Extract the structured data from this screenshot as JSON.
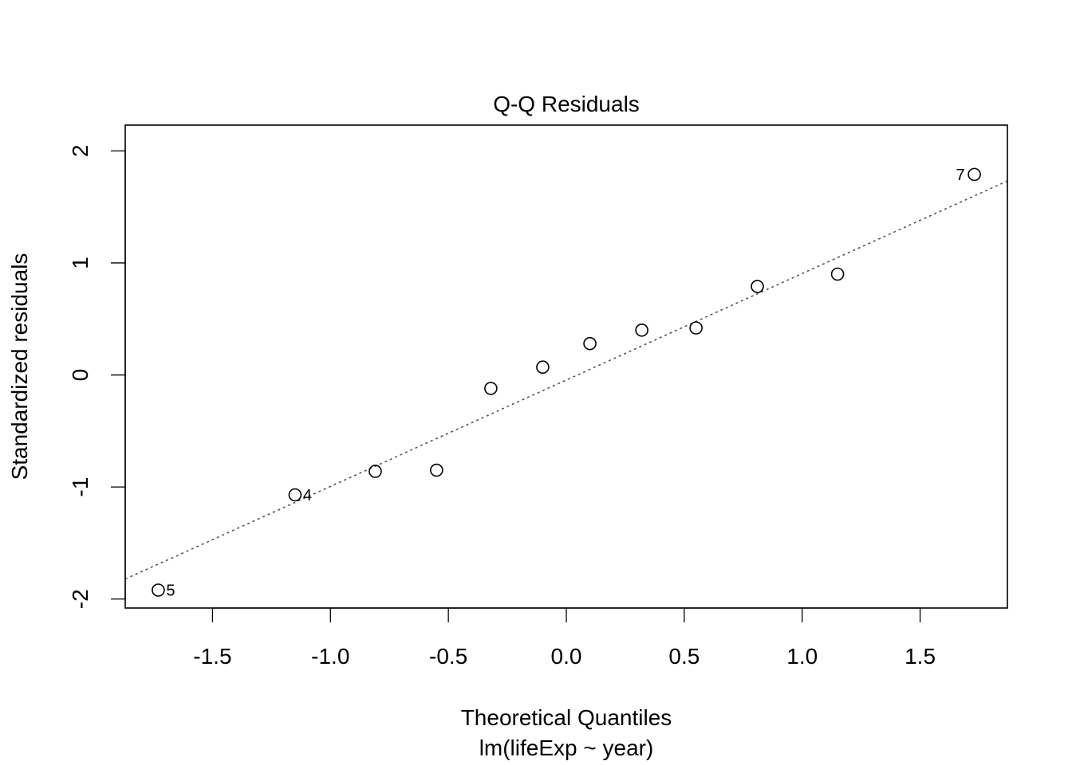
{
  "chart_data": {
    "type": "scatter",
    "title": "Q-Q Residuals",
    "xlabel": "Theoretical Quantiles",
    "sublabel": "lm(lifeExp ~ year)",
    "ylabel": "Standardized residuals",
    "xlim": [
      -1.87,
      1.87
    ],
    "ylim": [
      -2.08,
      2.23
    ],
    "x_ticks": [
      -1.5,
      -1.0,
      -0.5,
      0.0,
      0.5,
      1.0,
      1.5
    ],
    "x_tick_labels": [
      "-1.5",
      "-1.0",
      "-0.5",
      "0.0",
      "0.5",
      "1.0",
      "1.5"
    ],
    "y_ticks": [
      -2,
      -1,
      0,
      1,
      2
    ],
    "y_tick_labels": [
      "-2",
      "-1",
      "0",
      "1",
      "2"
    ],
    "points": [
      {
        "x": -1.73,
        "y": -1.92,
        "label": "5"
      },
      {
        "x": -1.15,
        "y": -1.07,
        "label": "4"
      },
      {
        "x": -0.81,
        "y": -0.86,
        "label": ""
      },
      {
        "x": -0.55,
        "y": -0.85,
        "label": ""
      },
      {
        "x": -0.32,
        "y": -0.12,
        "label": ""
      },
      {
        "x": -0.1,
        "y": 0.07,
        "label": ""
      },
      {
        "x": 0.1,
        "y": 0.28,
        "label": ""
      },
      {
        "x": 0.32,
        "y": 0.4,
        "label": ""
      },
      {
        "x": 0.55,
        "y": 0.42,
        "label": ""
      },
      {
        "x": 0.81,
        "y": 0.79,
        "label": ""
      },
      {
        "x": 1.15,
        "y": 0.9,
        "label": ""
      },
      {
        "x": 1.73,
        "y": 1.79,
        "label": "7"
      }
    ],
    "reference_line": {
      "intercept": -0.045,
      "slope": 0.95,
      "style": "dotted"
    }
  }
}
